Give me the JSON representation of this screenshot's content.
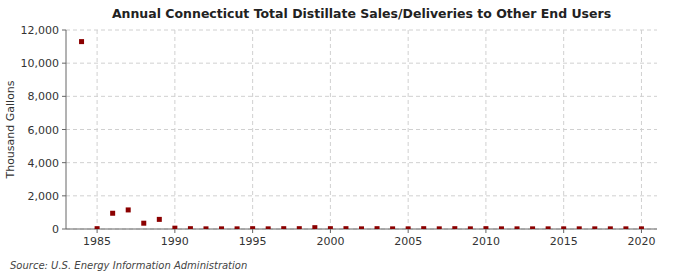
{
  "chart_data": {
    "type": "scatter",
    "title": "Annual Connecticut Total Distillate Sales/Deliveries to Other End Users",
    "y_label": "Thousand Gallons",
    "annotation": "Source: U.S. Energy Information Administration",
    "color": "#8b0000",
    "marker": "square",
    "x": [
      1984,
      1985,
      1986,
      1987,
      1988,
      1989,
      1990,
      1991,
      1992,
      1993,
      1994,
      1995,
      1996,
      1997,
      1998,
      1999,
      2000,
      2001,
      2002,
      2003,
      2004,
      2005,
      2006,
      2007,
      2008,
      2009,
      2010,
      2011,
      2012,
      2013,
      2014,
      2015,
      2016,
      2017,
      2018,
      2019,
      2020
    ],
    "values": [
      11300,
      20,
      950,
      1150,
      350,
      580,
      50,
      20,
      10,
      10,
      10,
      20,
      10,
      20,
      20,
      80,
      20,
      20,
      10,
      20,
      10,
      10,
      20,
      10,
      20,
      10,
      20,
      10,
      10,
      10,
      10,
      10,
      10,
      10,
      10,
      10,
      10
    ],
    "xlim": [
      1983,
      2021
    ],
    "xticks": [
      1985,
      1990,
      1995,
      2000,
      2005,
      2010,
      2015,
      2020
    ],
    "ylim": [
      0,
      12000
    ],
    "yticks": [
      0,
      {
        "value": 2000,
        "label": "2,000"
      },
      {
        "value": 4000,
        "label": "4,000"
      },
      {
        "value": 6000,
        "label": "6,000"
      },
      {
        "value": 8000,
        "label": "8,000"
      },
      {
        "value": 10000,
        "label": "10,000"
      },
      {
        "value": 12000,
        "label": "12,000"
      }
    ],
    "grid": true
  }
}
